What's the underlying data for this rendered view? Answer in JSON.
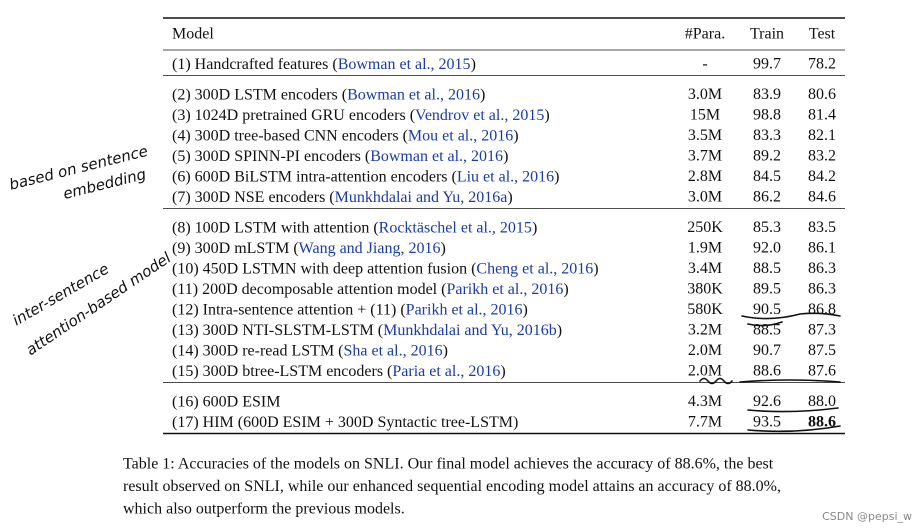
{
  "table": {
    "header": [
      "Model",
      "#Para.",
      "Train",
      "Test"
    ],
    "groups": [
      [
        {
          "parts": [
            "(1) Handcrafted features (",
            "Bowman et al., 2015",
            ")"
          ],
          "params": "-",
          "train": "99.7",
          "test": "78.2"
        }
      ],
      [
        {
          "parts": [
            "(2) 300D LSTM encoders (",
            "Bowman et al., 2016",
            ")"
          ],
          "params": "3.0M",
          "train": "83.9",
          "test": "80.6"
        },
        {
          "parts": [
            "(3) 1024D pretrained GRU encoders (",
            "Vendrov et al., 2015",
            ")"
          ],
          "params": "15M",
          "train": "98.8",
          "test": "81.4"
        },
        {
          "parts": [
            "(4) 300D tree-based CNN encoders (",
            "Mou et al., 2016",
            ")"
          ],
          "params": "3.5M",
          "train": "83.3",
          "test": "82.1"
        },
        {
          "parts": [
            "(5) 300D SPINN-PI encoders (",
            "Bowman et al., 2016",
            ")"
          ],
          "params": "3.7M",
          "train": "89.2",
          "test": "83.2"
        },
        {
          "parts": [
            "(6) 600D BiLSTM intra-attention encoders (",
            "Liu et al., 2016",
            ")"
          ],
          "params": "2.8M",
          "train": "84.5",
          "test": "84.2"
        },
        {
          "parts": [
            "(7) 300D NSE encoders (",
            "Munkhdalai and Yu, 2016a",
            ")"
          ],
          "params": "3.0M",
          "train": "86.2",
          "test": "84.6"
        }
      ],
      [
        {
          "parts": [
            "(8) 100D LSTM with attention (",
            "Rocktäschel et al., 2015",
            ")"
          ],
          "params": "250K",
          "train": "85.3",
          "test": "83.5"
        },
        {
          "parts": [
            "(9) 300D mLSTM (",
            "Wang and Jiang, 2016",
            ")"
          ],
          "params": "1.9M",
          "train": "92.0",
          "test": "86.1"
        },
        {
          "parts": [
            "(10) 450D LSTMN with deep attention fusion (",
            "Cheng et al., 2016",
            ")"
          ],
          "params": "3.4M",
          "train": "88.5",
          "test": "86.3"
        },
        {
          "parts": [
            "(11) 200D decomposable attention model (",
            "Parikh et al., 2016",
            ")"
          ],
          "params": "380K",
          "train": "89.5",
          "test": "86.3"
        },
        {
          "parts": [
            "(12) Intra-sentence attention + (11) (",
            "Parikh et al., 2016",
            ")"
          ],
          "params": "580K",
          "train": "90.5",
          "test": "86.8"
        },
        {
          "parts": [
            "(13) 300D NTI-SLSTM-LSTM (",
            "Munkhdalai and Yu, 2016b",
            ")"
          ],
          "params": "3.2M",
          "train": "88.5",
          "test": "87.3"
        },
        {
          "parts": [
            "(14) 300D re-read LSTM (",
            "Sha et al., 2016",
            ")"
          ],
          "params": "2.0M",
          "train": "90.7",
          "test": "87.5"
        },
        {
          "parts": [
            "(15) 300D btree-LSTM encoders (",
            "Paria et al., 2016",
            ")"
          ],
          "params": "2.0M",
          "train": "88.6",
          "test": "87.6"
        }
      ],
      [
        {
          "parts": [
            "(16) 600D ESIM"
          ],
          "params": "4.3M",
          "train": "92.6",
          "test": "88.0"
        },
        {
          "parts": [
            "(17) HIM (600D ESIM + 300D Syntactic tree-LSTM)"
          ],
          "params": "7.7M",
          "train": "93.5",
          "test": "88.6",
          "bold_test": true
        }
      ]
    ]
  },
  "caption": [
    "Table 1: Accuracies of the models on SNLI. Our final model achieves the accuracy of 88.6%, the best",
    "result observed on SNLI, while our enhanced sequential encoding model attains an accuracy of 88.0%,",
    "which also outperform the previous models."
  ],
  "annotations": {
    "sentence": [
      "based on sentence",
      "embedding"
    ],
    "inter": [
      "inter-sentence",
      "attention-based model"
    ]
  },
  "watermark": "CSDN @pepsi_w"
}
